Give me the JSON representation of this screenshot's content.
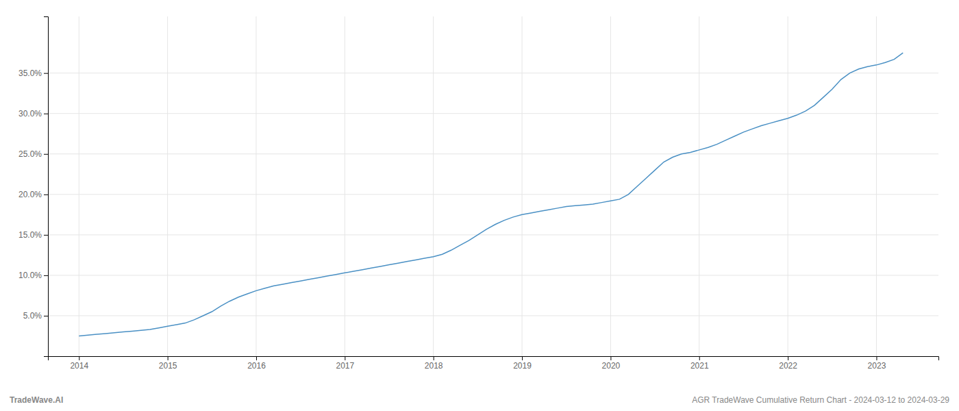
{
  "chart_data": {
    "type": "line",
    "x": [
      2014.0,
      2014.1,
      2014.2,
      2014.3,
      2014.4,
      2014.5,
      2014.6,
      2014.7,
      2014.8,
      2014.9,
      2015.0,
      2015.1,
      2015.2,
      2015.3,
      2015.4,
      2015.5,
      2015.6,
      2015.7,
      2015.8,
      2015.9,
      2016.0,
      2016.1,
      2016.2,
      2016.3,
      2016.4,
      2016.5,
      2016.6,
      2016.7,
      2016.8,
      2016.9,
      2017.0,
      2017.1,
      2017.2,
      2017.3,
      2017.4,
      2017.5,
      2017.6,
      2017.7,
      2017.8,
      2017.9,
      2018.0,
      2018.1,
      2018.2,
      2018.3,
      2018.4,
      2018.5,
      2018.6,
      2018.7,
      2018.8,
      2018.9,
      2019.0,
      2019.1,
      2019.2,
      2019.3,
      2019.4,
      2019.5,
      2019.6,
      2019.7,
      2019.8,
      2019.9,
      2020.0,
      2020.1,
      2020.2,
      2020.3,
      2020.4,
      2020.5,
      2020.6,
      2020.7,
      2020.8,
      2020.9,
      2021.0,
      2021.1,
      2021.2,
      2021.3,
      2021.4,
      2021.5,
      2021.6,
      2021.7,
      2021.8,
      2021.9,
      2022.0,
      2022.1,
      2022.2,
      2022.3,
      2022.4,
      2022.5,
      2022.6,
      2022.7,
      2022.8,
      2022.9,
      2023.0,
      2023.1,
      2023.2,
      2023.3
    ],
    "values": [
      2.5,
      2.6,
      2.7,
      2.8,
      2.9,
      3.0,
      3.1,
      3.2,
      3.3,
      3.5,
      3.7,
      3.9,
      4.1,
      4.5,
      5.0,
      5.5,
      6.2,
      6.8,
      7.3,
      7.7,
      8.1,
      8.4,
      8.7,
      8.9,
      9.1,
      9.3,
      9.5,
      9.7,
      9.9,
      10.1,
      10.3,
      10.5,
      10.7,
      10.9,
      11.1,
      11.3,
      11.5,
      11.7,
      11.9,
      12.1,
      12.3,
      12.6,
      13.1,
      13.7,
      14.3,
      15.0,
      15.7,
      16.3,
      16.8,
      17.2,
      17.5,
      17.7,
      17.9,
      18.1,
      18.3,
      18.5,
      18.6,
      18.7,
      18.8,
      19.0,
      19.2,
      19.4,
      20.0,
      21.0,
      22.0,
      23.0,
      24.0,
      24.6,
      25.0,
      25.2,
      25.5,
      25.8,
      26.2,
      26.7,
      27.2,
      27.7,
      28.1,
      28.5,
      28.8,
      29.1,
      29.4,
      29.8,
      30.3,
      31.0,
      32.0,
      33.0,
      34.2,
      35.0,
      35.5,
      35.8,
      36.0,
      36.3,
      36.7,
      37.5
    ],
    "color": "#4a90c4",
    "xlim": [
      2013.65,
      2023.7
    ],
    "xticks": [
      2014,
      2015,
      2016,
      2017,
      2018,
      2019,
      2020,
      2021,
      2022,
      2023
    ],
    "ylim": [
      0,
      42
    ],
    "yticks": [
      {
        "value": 5.0,
        "label": "5.0%"
      },
      {
        "value": 10.0,
        "label": "10.0%"
      },
      {
        "value": 15.0,
        "label": "15.0%"
      },
      {
        "value": 20.0,
        "label": "20.0%"
      },
      {
        "value": 25.0,
        "label": "25.0%"
      },
      {
        "value": 30.0,
        "label": "30.0%"
      },
      {
        "value": 35.0,
        "label": "35.0%"
      }
    ],
    "grid": true,
    "annotations": [
      "TradeWave.AI",
      "AGR TradeWave Cumulative Return Chart - 2024-03-12 to 2024-03-29"
    ]
  }
}
